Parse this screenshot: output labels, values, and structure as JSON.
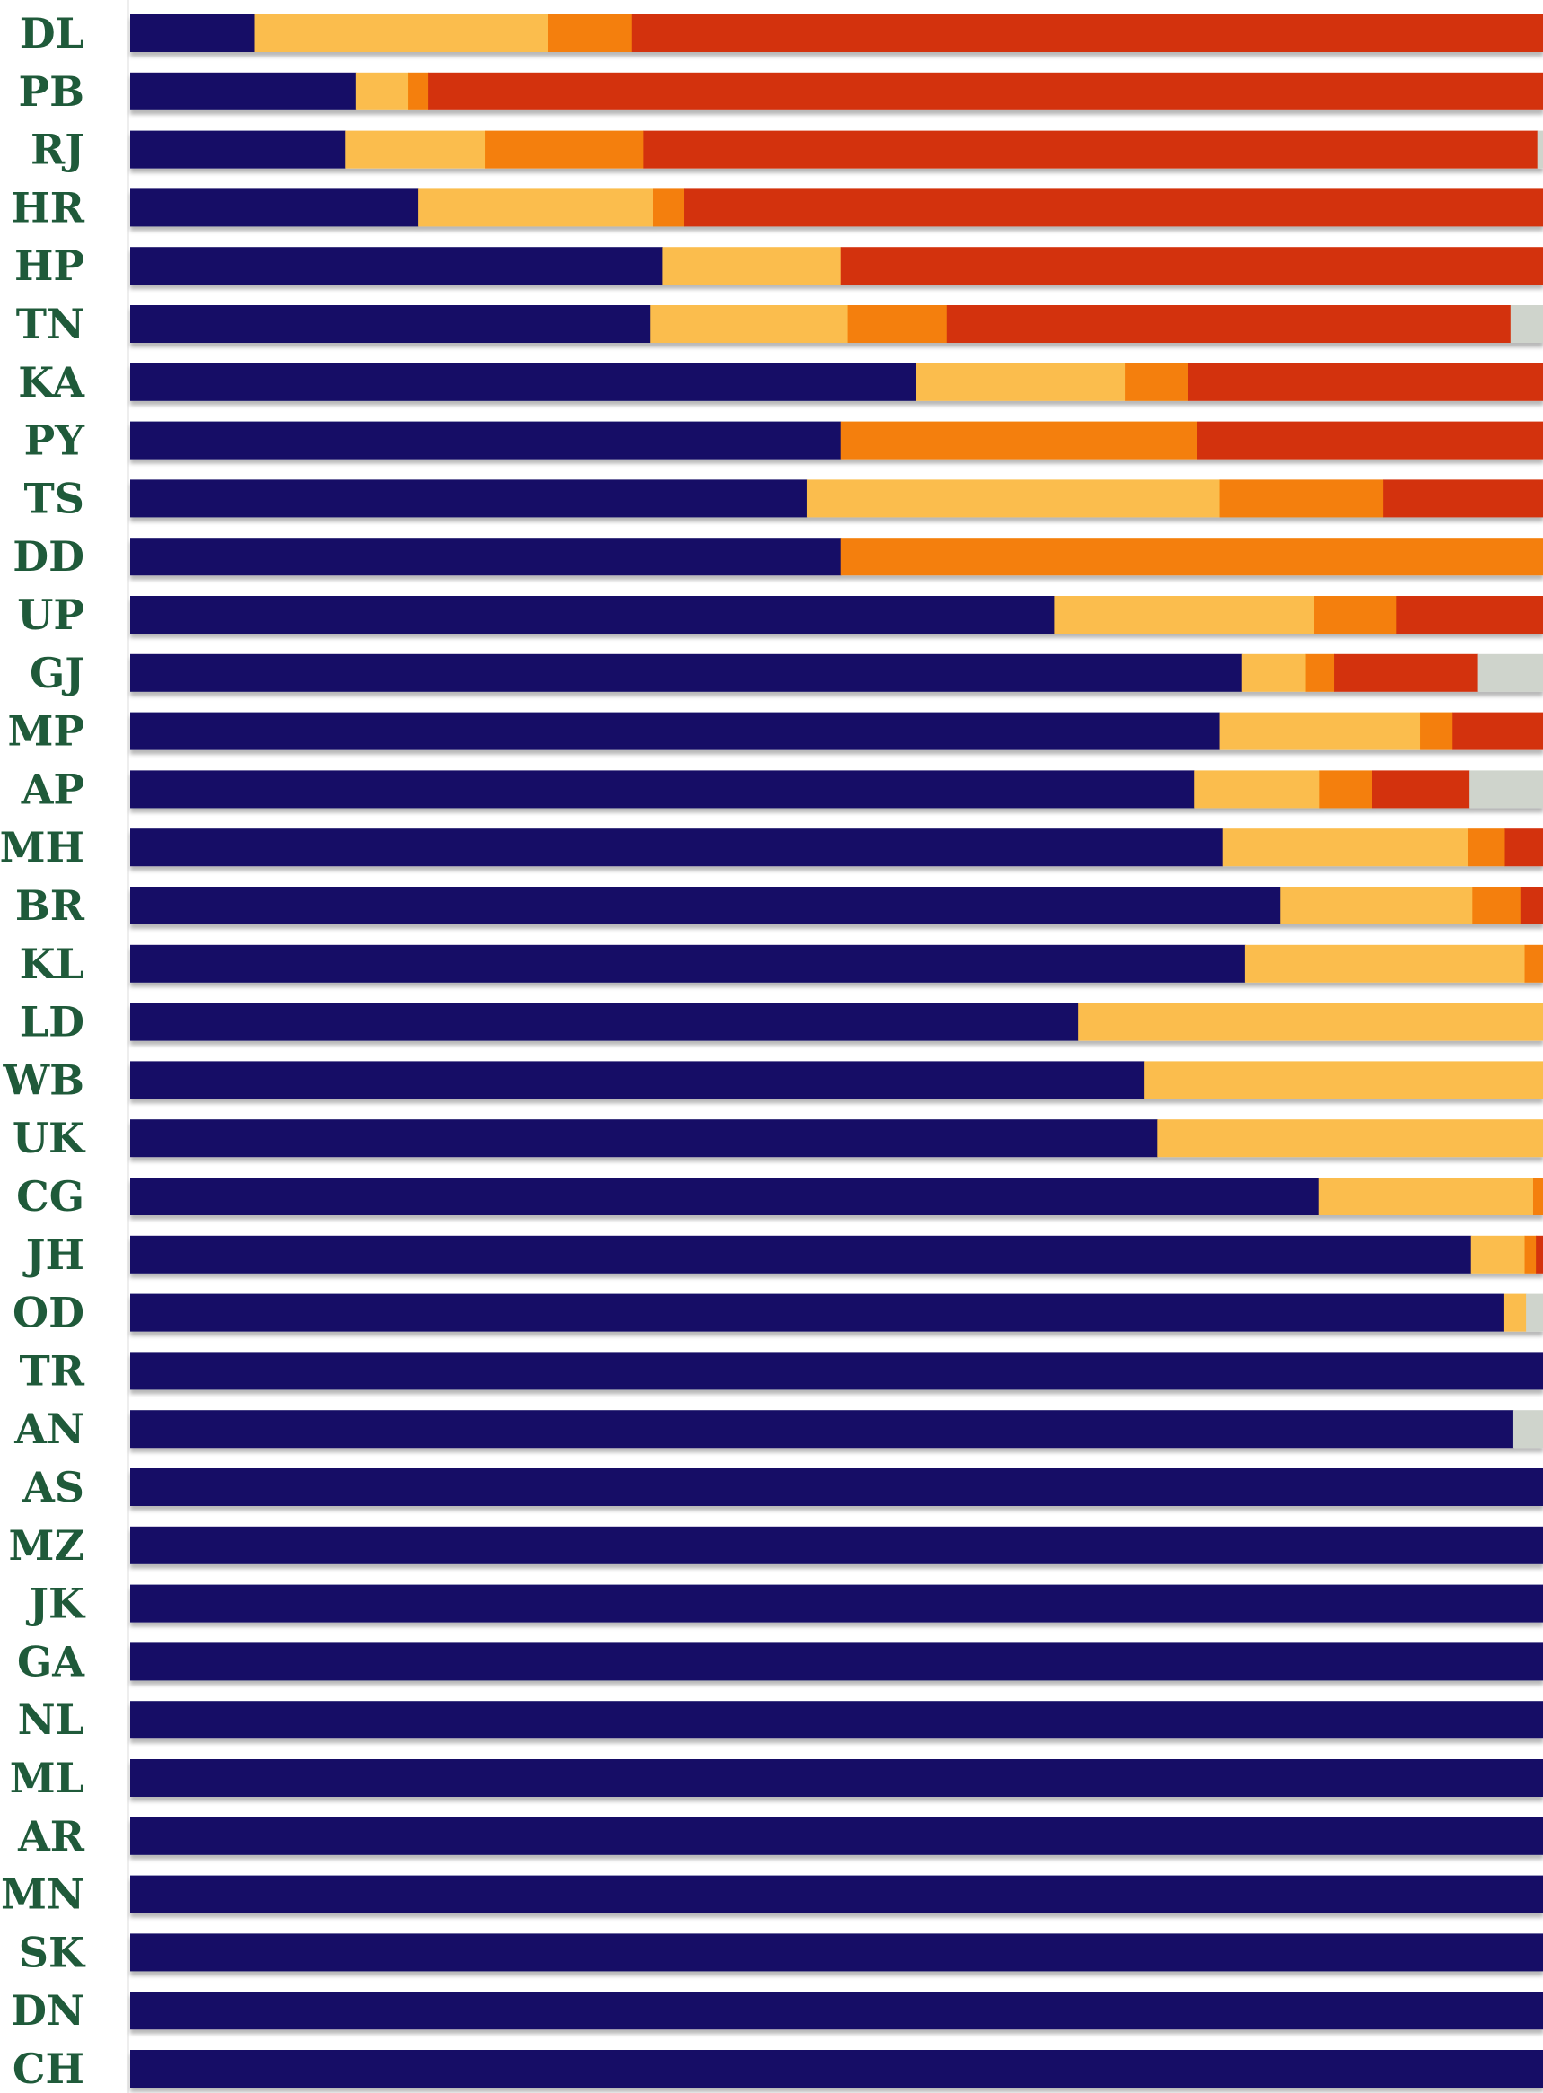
{
  "chart_data": {
    "type": "bar",
    "orientation": "horizontal",
    "stacked": true,
    "normalized": true,
    "title": "",
    "xlabel": "",
    "ylabel": "",
    "xlim": [
      0,
      1
    ],
    "grid": false,
    "legend": "none",
    "categories": [
      "DL",
      "PB",
      "RJ",
      "HR",
      "HP",
      "TN",
      "KA",
      "PY",
      "TS",
      "DD",
      "UP",
      "GJ",
      "MP",
      "AP",
      "MH",
      "BR",
      "KL",
      "LD",
      "WB",
      "UK",
      "CG",
      "JH",
      "OD",
      "TR",
      "AN",
      "AS",
      "MZ",
      "JK",
      "GA",
      "NL",
      "ML",
      "AR",
      "MN",
      "SK",
      "DN",
      "CH"
    ],
    "series": [
      {
        "color": "#131166",
        "values": [
          0.088,
          0.16,
          0.152,
          0.204,
          0.377,
          0.368,
          0.556,
          0.503,
          0.479,
          0.503,
          0.654,
          0.787,
          0.771,
          0.753,
          0.773,
          0.814,
          0.789,
          0.671,
          0.718,
          0.727,
          0.841,
          0.949,
          0.972,
          1.0,
          0.979,
          1.0,
          1.0,
          1.0,
          1.0,
          1.0,
          1.0,
          1.0,
          1.0,
          1.0,
          1.0,
          1.0
        ]
      },
      {
        "color": "#fbbd4e",
        "values": [
          0.208,
          0.037,
          0.099,
          0.166,
          0.126,
          0.14,
          0.148,
          0.0,
          0.292,
          0.0,
          0.184,
          0.045,
          0.142,
          0.089,
          0.174,
          0.136,
          0.198,
          0.329,
          0.282,
          0.273,
          0.152,
          0.038,
          0.016,
          0.0,
          0.0,
          0.0,
          0.0,
          0.0,
          0.0,
          0.0,
          0.0,
          0.0,
          0.0,
          0.0,
          0.0,
          0.0
        ]
      },
      {
        "color": "#f47f07",
        "values": [
          0.059,
          0.014,
          0.112,
          0.022,
          0.0,
          0.07,
          0.045,
          0.252,
          0.116,
          0.497,
          0.058,
          0.02,
          0.023,
          0.037,
          0.026,
          0.034,
          0.013,
          0.0,
          0.0,
          0.0,
          0.007,
          0.008,
          0.0,
          0.0,
          0.0,
          0.0,
          0.0,
          0.0,
          0.0,
          0.0,
          0.0,
          0.0,
          0.0,
          0.0,
          0.0,
          0.0
        ]
      },
      {
        "color": "#d3330c",
        "values": [
          0.645,
          0.789,
          0.633,
          0.608,
          0.497,
          0.399,
          0.251,
          0.245,
          0.113,
          0.0,
          0.104,
          0.102,
          0.064,
          0.069,
          0.027,
          0.016,
          0.0,
          0.0,
          0.0,
          0.0,
          0.0,
          0.005,
          0.0,
          0.0,
          0.0,
          0.0,
          0.0,
          0.0,
          0.0,
          0.0,
          0.0,
          0.0,
          0.0,
          0.0,
          0.0,
          0.0
        ]
      },
      {
        "color": "#cfd4cc",
        "values": [
          0.0,
          0.0,
          0.004,
          0.0,
          0.0,
          0.023,
          0.0,
          0.0,
          0.0,
          0.0,
          0.0,
          0.046,
          0.0,
          0.052,
          0.0,
          0.0,
          0.0,
          0.0,
          0.0,
          0.0,
          0.0,
          0.0,
          0.012,
          0.0,
          0.021,
          0.0,
          0.0,
          0.0,
          0.0,
          0.0,
          0.0,
          0.0,
          0.0,
          0.0,
          0.0,
          0.0
        ]
      }
    ]
  }
}
